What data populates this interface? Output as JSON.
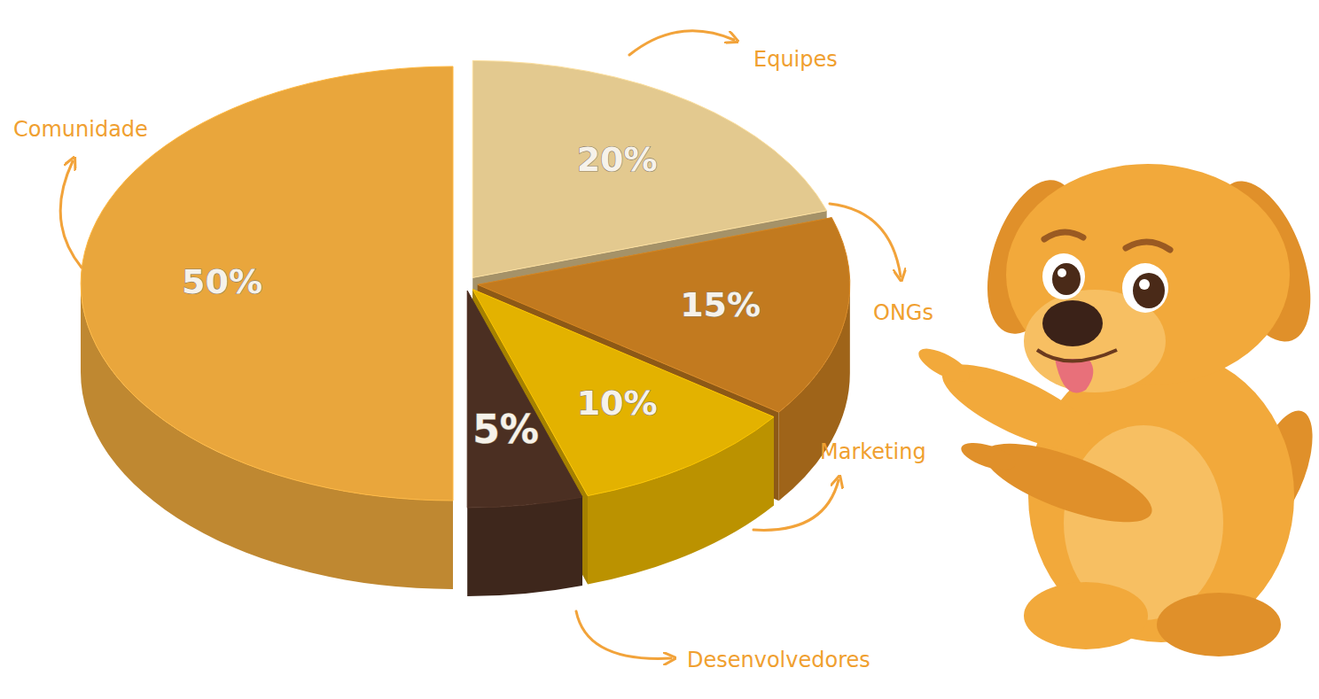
{
  "chart_data": {
    "type": "pie",
    "categories": [
      "Equipes",
      "ONGs",
      "Marketing",
      "Desenvolvedores",
      "Comunidade"
    ],
    "values": [
      20,
      15,
      10,
      5,
      50
    ],
    "value_labels": [
      "20%",
      "15%",
      "10%",
      "5%",
      "50%"
    ],
    "colors": [
      "#e3c98f",
      "#c27a1f",
      "#e3b200",
      "#4b2f22",
      "#e9a63c"
    ],
    "data_labels": true
  }
}
